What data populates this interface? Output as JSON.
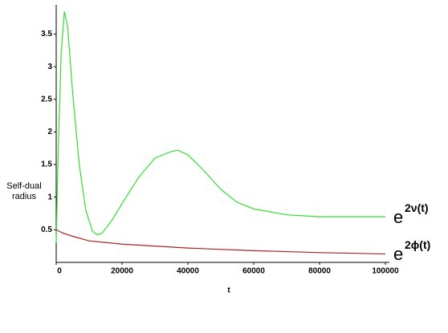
{
  "chart_data": {
    "type": "line",
    "y_label": "Self-dual radius",
    "x_label": "t",
    "xlim": [
      0,
      100000
    ],
    "ylim": [
      0,
      3.95
    ],
    "xticks": [
      0,
      20000,
      40000,
      60000,
      80000,
      100000
    ],
    "yticks": [
      0.5,
      1,
      1.5,
      2,
      2.5,
      3,
      3.5
    ],
    "series": [
      {
        "name": "e",
        "superscript": "2ν(t)",
        "color": "#33dd33",
        "x": [
          0,
          500,
          1500,
          2500,
          3500,
          5000,
          7000,
          9000,
          11000,
          12500,
          14000,
          17000,
          20000,
          25000,
          30000,
          35000,
          37000,
          40000,
          45000,
          50000,
          55000,
          60000,
          70000,
          80000,
          90000,
          100000
        ],
        "y": [
          0.3,
          1.5,
          3.2,
          3.85,
          3.6,
          2.6,
          1.5,
          0.8,
          0.48,
          0.42,
          0.45,
          0.65,
          0.9,
          1.3,
          1.6,
          1.7,
          1.72,
          1.65,
          1.4,
          1.12,
          0.92,
          0.82,
          0.73,
          0.7,
          0.7,
          0.7
        ]
      },
      {
        "name": "e",
        "superscript": "2ϕ(t)",
        "color": "#aa2222",
        "x": [
          0,
          2000,
          5000,
          10000,
          20000,
          40000,
          60000,
          80000,
          100000
        ],
        "y": [
          0.5,
          0.45,
          0.4,
          0.33,
          0.28,
          0.22,
          0.18,
          0.15,
          0.13
        ]
      }
    ]
  }
}
